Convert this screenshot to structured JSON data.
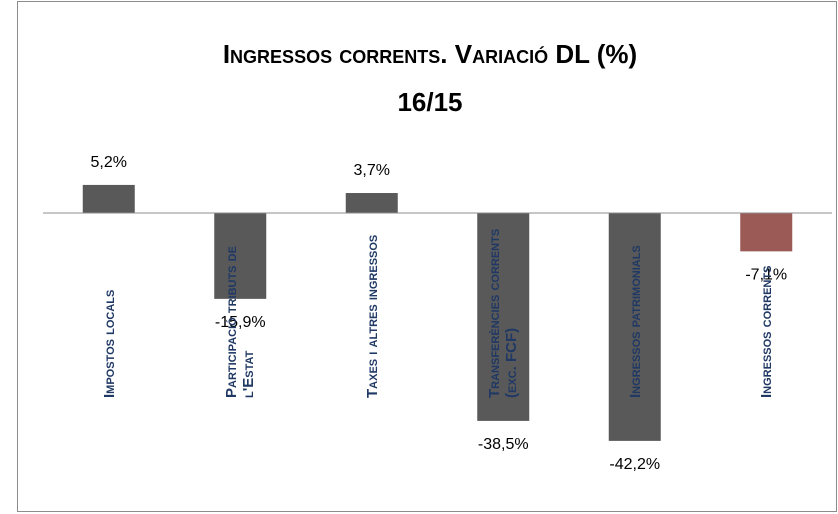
{
  "chart_data": {
    "type": "bar",
    "title": "Ingressos corrents. Variació DL (%)",
    "subtitle": "16/15",
    "categories": [
      "Impostos locals",
      "Participació tributs de l'Estat",
      "Taxes i altres ingressos",
      "Transferències corrents (exc. FCF)",
      "Ingressos patrimonials",
      "Ingressos corrents"
    ],
    "values": [
      5.2,
      -15.9,
      3.7,
      -38.5,
      -42.2,
      -7.1
    ],
    "value_labels": [
      "5,2%",
      "-15,9%",
      "3,7%",
      "-38,5%",
      "-42,2%",
      "-7,1%"
    ],
    "colors": [
      "#595959",
      "#595959",
      "#595959",
      "#595959",
      "#595959",
      "#9b5a55"
    ],
    "ylim": [
      -50,
      10
    ]
  }
}
